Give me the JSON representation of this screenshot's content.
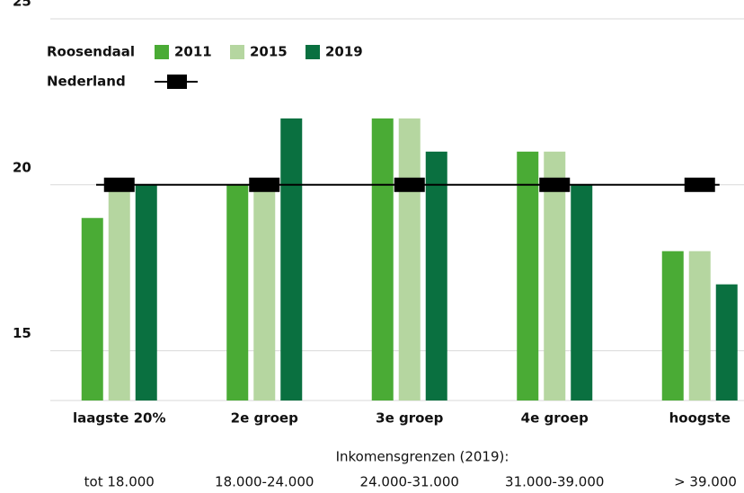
{
  "chart_data": {
    "type": "bar",
    "categories": [
      "laagste 20%",
      "2e groep",
      "3e groep",
      "4e groep",
      "hoogste"
    ],
    "legend_title": "Roosendaal",
    "series": [
      {
        "name": "2011",
        "color": "#4aab35",
        "values": [
          19,
          20,
          22,
          21,
          18
        ]
      },
      {
        "name": "2015",
        "color": "#b5d6a0",
        "values": [
          20,
          20,
          22,
          21,
          18
        ]
      },
      {
        "name": "2019",
        "color": "#0a7040",
        "values": [
          20,
          22,
          21,
          20,
          17
        ]
      },
      {
        "name": "Nederland",
        "type": "line",
        "color": "#000000",
        "values": [
          20,
          20,
          20,
          20,
          20
        ]
      }
    ],
    "ylim": [
      13.5,
      25
    ],
    "yticks": [
      15,
      20,
      25
    ],
    "grid": true,
    "income_note": "Inkomensgrenzen (2019):",
    "income_ranges": [
      "tot 18.000",
      "18.000-24.000",
      "24.000-31.000",
      "31.000-39.000",
      "> 39.000"
    ]
  }
}
